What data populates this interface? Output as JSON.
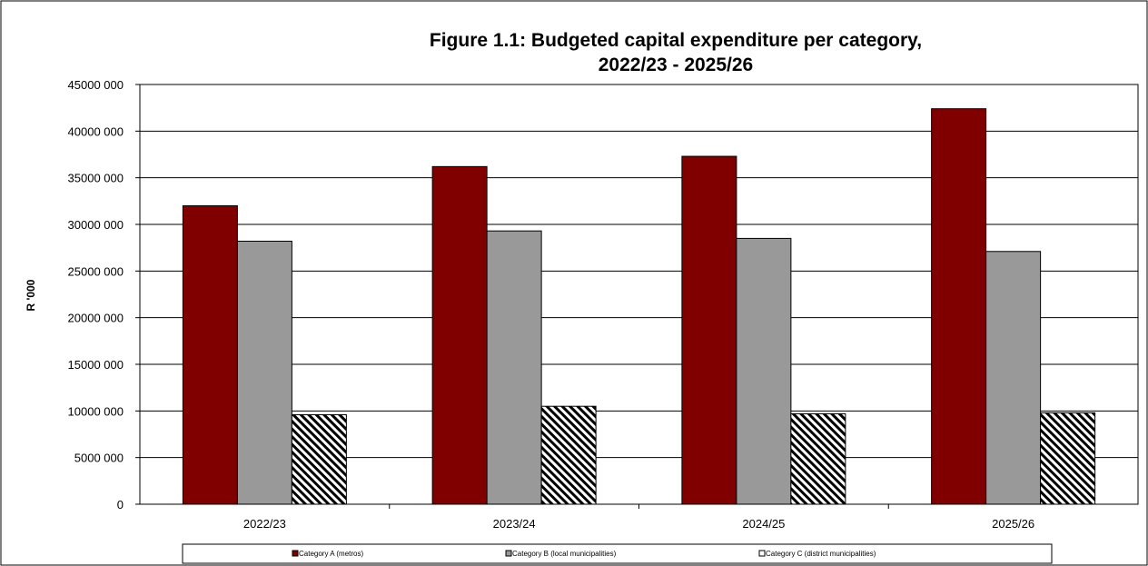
{
  "chart_data": {
    "type": "bar",
    "title_line1": "Figure 1.1: Budgeted capital expenditure per category,",
    "title_line2": "2022/23 - 2025/26",
    "xlabel": "",
    "ylabel": "R '000",
    "ylim": [
      0,
      45000000
    ],
    "ytick_step": 5000000,
    "ytick_labels": [
      "0",
      "5000 000",
      "10000 000",
      "15000 000",
      "20000 000",
      "25000 000",
      "30000 000",
      "35000 000",
      "40000 000",
      "45000 000"
    ],
    "grid": true,
    "legend_position": "bottom",
    "categories": [
      "2022/23",
      "2023/24",
      "2024/25",
      "2025/26"
    ],
    "series": [
      {
        "name": "Category A (metros)",
        "values": [
          32000000,
          36200000,
          37300000,
          42400000
        ],
        "color": "#800000",
        "pattern": "solid"
      },
      {
        "name": "Category B (local municipalities)",
        "values": [
          28200000,
          29300000,
          28500000,
          27100000
        ],
        "color": "#999999",
        "pattern": "solid"
      },
      {
        "name": "Category C (district municipalities)",
        "values": [
          9600000,
          10500000,
          9700000,
          9800000
        ],
        "color": "#000000",
        "pattern": "diagonal-stripes"
      }
    ]
  }
}
